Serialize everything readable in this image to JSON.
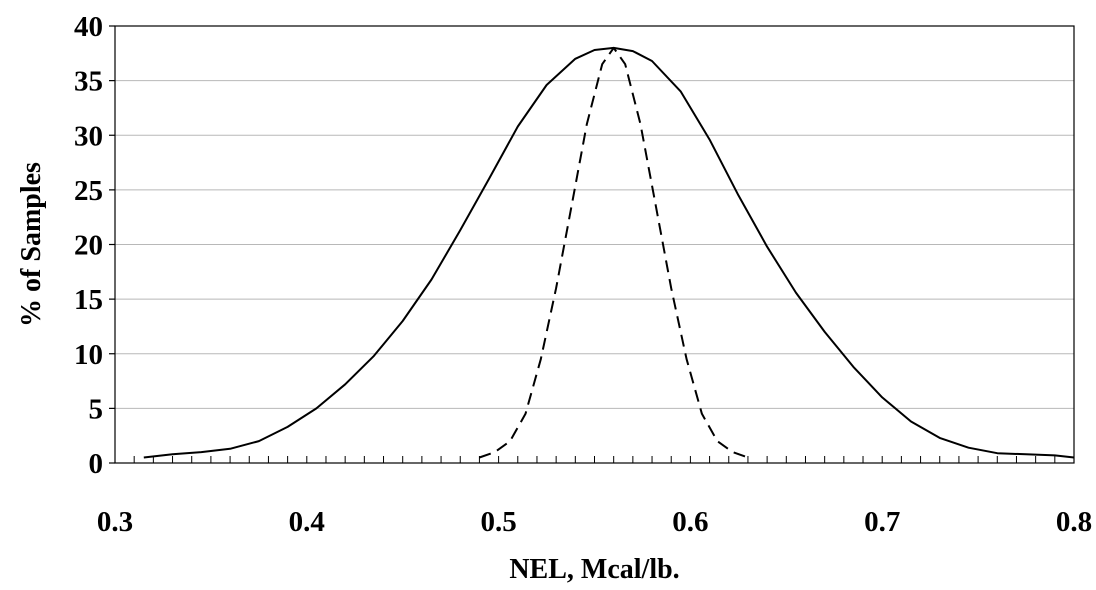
{
  "chart_data": {
    "type": "line",
    "title": "",
    "xlabel": "NEL, Mcal/lb.",
    "ylabel": "% of Samples",
    "xlim": [
      0.3,
      0.8
    ],
    "ylim": [
      0,
      40
    ],
    "x_ticks": [
      0.3,
      0.4,
      0.5,
      0.6,
      0.7,
      0.8
    ],
    "x_tick_labels": [
      "0.3",
      "0.4",
      "0.5",
      "0.6",
      "0.7",
      "0.8"
    ],
    "x_minor_step": 0.01,
    "y_ticks": [
      0,
      5,
      10,
      15,
      20,
      25,
      30,
      35,
      40
    ],
    "y_tick_labels": [
      "0",
      "5",
      "10",
      "15",
      "20",
      "25",
      "30",
      "35",
      "40"
    ],
    "grid": "horizontal",
    "legend": "none",
    "series": [
      {
        "style": "solid",
        "color": "#000000",
        "x": [
          0.315,
          0.33,
          0.345,
          0.36,
          0.375,
          0.39,
          0.405,
          0.42,
          0.435,
          0.45,
          0.465,
          0.48,
          0.495,
          0.51,
          0.525,
          0.54,
          0.55,
          0.56,
          0.57,
          0.58,
          0.595,
          0.61,
          0.625,
          0.64,
          0.655,
          0.67,
          0.685,
          0.7,
          0.715,
          0.73,
          0.745,
          0.76,
          0.775,
          0.79,
          0.8
        ],
        "y": [
          0.5,
          0.8,
          1.0,
          1.3,
          2.0,
          3.3,
          5.0,
          7.2,
          9.8,
          13.0,
          16.8,
          21.3,
          26.0,
          30.8,
          34.6,
          37.0,
          37.8,
          38.0,
          37.7,
          36.8,
          34.0,
          29.6,
          24.5,
          19.8,
          15.6,
          12.0,
          8.8,
          6.0,
          3.8,
          2.3,
          1.4,
          0.9,
          0.8,
          0.7,
          0.5
        ]
      },
      {
        "style": "dashed",
        "color": "#000000",
        "x": [
          0.49,
          0.498,
          0.506,
          0.514,
          0.522,
          0.53,
          0.538,
          0.546,
          0.554,
          0.56,
          0.566,
          0.574,
          0.582,
          0.59,
          0.598,
          0.606,
          0.614,
          0.622,
          0.63
        ],
        "y": [
          0.5,
          1.0,
          2.0,
          4.5,
          9.5,
          16.0,
          23.5,
          31.0,
          36.5,
          38.0,
          36.5,
          31.0,
          23.5,
          16.0,
          9.5,
          4.5,
          2.0,
          1.0,
          0.5
        ]
      }
    ]
  }
}
